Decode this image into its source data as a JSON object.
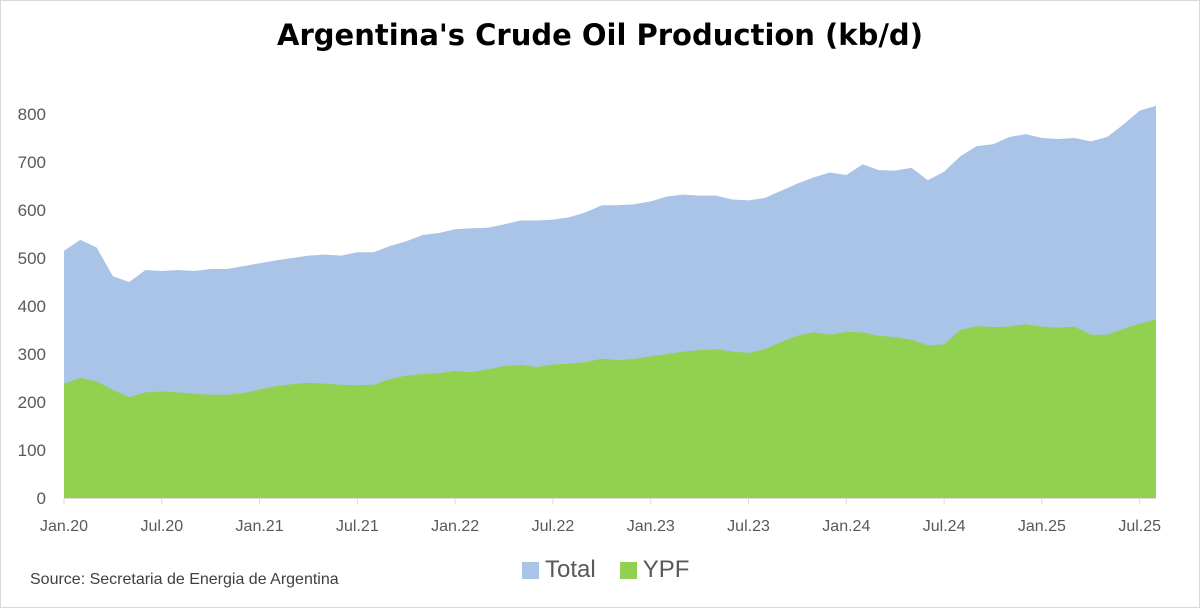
{
  "chart_data": {
    "type": "area",
    "title": "Argentina's Crude Oil Production (kb/d)",
    "source": "Source: Secretaria de Energia de Argentina",
    "ylim": [
      0,
      850
    ],
    "yticks": [
      0,
      100,
      200,
      300,
      400,
      500,
      600,
      700,
      800
    ],
    "xtick_labels": [
      "Jan.20",
      "Jul.20",
      "Jan.21",
      "Jul.21",
      "Jan.22",
      "Jul.22",
      "Jan.23",
      "Jul.23",
      "Jan.24",
      "Jul.24",
      "Jan.25",
      "Jul.25"
    ],
    "x_start": "2020-01",
    "x_end": "2025-09",
    "grid": false,
    "legend": "bottom",
    "colors": {
      "total": "#a9c4e6",
      "ypf": "#92d050"
    },
    "series": [
      {
        "name": "Total",
        "values": [
          515,
          538,
          522,
          462,
          450,
          475,
          473,
          475,
          473,
          477,
          477,
          483,
          489,
          495,
          500,
          505,
          507,
          505,
          512,
          512,
          525,
          535,
          548,
          552,
          560,
          562,
          563,
          570,
          578,
          578,
          580,
          585,
          595,
          610,
          610,
          612,
          618,
          628,
          632,
          630,
          630,
          622,
          620,
          625,
          640,
          655,
          668,
          678,
          673,
          695,
          683,
          682,
          688,
          662,
          680,
          712,
          733,
          737,
          752,
          758,
          750,
          748,
          750,
          743,
          752,
          778,
          807,
          817
        ]
      },
      {
        "name": "YPF",
        "values": [
          238,
          250,
          243,
          225,
          210,
          220,
          222,
          220,
          217,
          215,
          215,
          218,
          226,
          233,
          237,
          240,
          238,
          236,
          235,
          236,
          248,
          255,
          258,
          260,
          265,
          262,
          268,
          275,
          277,
          273,
          278,
          280,
          283,
          290,
          287,
          290,
          295,
          300,
          305,
          308,
          310,
          305,
          302,
          310,
          325,
          338,
          345,
          340,
          346,
          345,
          338,
          335,
          330,
          318,
          320,
          350,
          358,
          356,
          357,
          362,
          357,
          355,
          357,
          340,
          340,
          352,
          363,
          372
        ]
      }
    ]
  }
}
